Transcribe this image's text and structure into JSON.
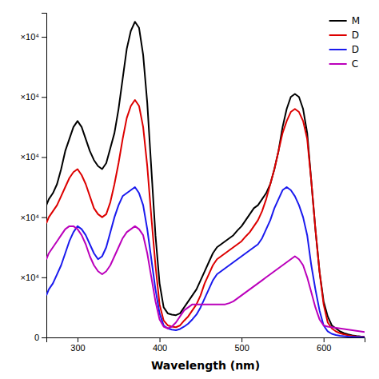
{
  "chart_data": {
    "type": "line",
    "xlabel": "Wavelength (nm)",
    "x": [
      262,
      265,
      270,
      275,
      280,
      285,
      290,
      295,
      300,
      305,
      310,
      315,
      320,
      325,
      330,
      335,
      340,
      345,
      350,
      355,
      360,
      365,
      370,
      375,
      380,
      385,
      390,
      395,
      400,
      405,
      410,
      415,
      420,
      425,
      430,
      435,
      440,
      445,
      450,
      455,
      460,
      465,
      470,
      475,
      480,
      485,
      490,
      495,
      500,
      505,
      510,
      515,
      520,
      525,
      530,
      535,
      540,
      545,
      550,
      555,
      560,
      565,
      570,
      575,
      580,
      585,
      590,
      595,
      600,
      605,
      610,
      615,
      620,
      625,
      630,
      635,
      640,
      645,
      650
    ],
    "series": [
      {
        "name": "M",
        "color": "#000000",
        "values": [
          22000,
          23000,
          24000,
          25500,
          28000,
          31000,
          33000,
          35000,
          36000,
          35000,
          33000,
          31000,
          29500,
          28500,
          28000,
          29000,
          31500,
          34000,
          38000,
          43000,
          48000,
          51000,
          52500,
          51500,
          47000,
          39000,
          28000,
          17000,
          9000,
          5000,
          4000,
          3800,
          3700,
          4000,
          5000,
          6000,
          7000,
          8000,
          9500,
          11000,
          12500,
          14000,
          15000,
          15500,
          16000,
          16500,
          17000,
          17800,
          18500,
          19500,
          20500,
          21500,
          22000,
          23000,
          24000,
          25500,
          28000,
          31000,
          35000,
          38000,
          40000,
          40500,
          40000,
          38000,
          34000,
          26000,
          18000,
          11000,
          6000,
          3500,
          2000,
          1500,
          1000,
          700,
          500,
          350,
          250,
          180,
          130
        ]
      },
      {
        "name": "D",
        "color": "#dd0000",
        "values": [
          19000,
          20000,
          21000,
          22000,
          23500,
          25000,
          26500,
          27500,
          28000,
          27000,
          25500,
          23500,
          21500,
          20500,
          20000,
          20500,
          22500,
          25500,
          29000,
          33000,
          36500,
          38500,
          39500,
          38500,
          35000,
          28500,
          20000,
          12000,
          5500,
          2800,
          2000,
          1800,
          1700,
          2000,
          2800,
          3500,
          4500,
          5500,
          7000,
          9000,
          10500,
          12000,
          13000,
          13500,
          14000,
          14500,
          15000,
          15500,
          16000,
          16800,
          17500,
          18500,
          19500,
          21000,
          23000,
          25500,
          28000,
          31000,
          34000,
          36000,
          37500,
          38000,
          37500,
          36000,
          33000,
          26000,
          18000,
          11000,
          5500,
          2500,
          1500,
          1000,
          700,
          500,
          350,
          250,
          180,
          130,
          90
        ]
      },
      {
        "name": "D",
        "color": "#1a1aee",
        "values": [
          7000,
          8000,
          9000,
          10500,
          12000,
          14000,
          16000,
          17500,
          18500,
          18000,
          17000,
          15500,
          14000,
          13000,
          13500,
          15000,
          17500,
          20000,
          22000,
          23500,
          24000,
          24500,
          25000,
          24000,
          22000,
          18000,
          13000,
          8000,
          4000,
          2000,
          1500,
          1300,
          1200,
          1400,
          1800,
          2300,
          3000,
          3800,
          5000,
          6500,
          8000,
          9500,
          10500,
          11000,
          11500,
          12000,
          12500,
          13000,
          13500,
          14000,
          14500,
          15000,
          15500,
          16500,
          18000,
          19500,
          21500,
          23000,
          24500,
          25000,
          24500,
          23500,
          22000,
          20000,
          17000,
          12000,
          8000,
          4500,
          2000,
          1000,
          600,
          400,
          280,
          200,
          140,
          100,
          70,
          50,
          35
        ]
      },
      {
        "name": "C",
        "color": "#bb00bb",
        "values": [
          13000,
          14000,
          15000,
          16000,
          17000,
          18000,
          18500,
          18500,
          18000,
          17000,
          15500,
          13500,
          12000,
          11000,
          10500,
          11000,
          12000,
          13500,
          15000,
          16500,
          17500,
          18000,
          18500,
          18000,
          17000,
          14000,
          10000,
          6000,
          3000,
          1800,
          1500,
          1800,
          2500,
          3500,
          4500,
          5000,
          5500,
          5500,
          5500,
          5500,
          5500,
          5500,
          5500,
          5500,
          5500,
          5700,
          6000,
          6500,
          7000,
          7500,
          8000,
          8500,
          9000,
          9500,
          10000,
          10500,
          11000,
          11500,
          12000,
          12500,
          13000,
          13500,
          13000,
          12000,
          10000,
          7500,
          5000,
          3000,
          2000,
          1800,
          1700,
          1600,
          1500,
          1400,
          1300,
          1200,
          1100,
          1000,
          900
        ]
      }
    ],
    "xlim": [
      262,
      650
    ],
    "ylim": [
      0,
      54000
    ],
    "xticks": [
      300,
      400,
      500,
      600
    ],
    "yticks": [
      0,
      {
        "value": 10000,
        "label": "×10⁴"
      },
      {
        "value": 20000,
        "label": "×10⁴"
      },
      {
        "value": 30000,
        "label": "×10⁴"
      },
      {
        "value": 40000,
        "label": "×10⁴"
      },
      {
        "value": 50000,
        "label": "×10⁴"
      }
    ],
    "legend": "upper right",
    "grid": false
  }
}
